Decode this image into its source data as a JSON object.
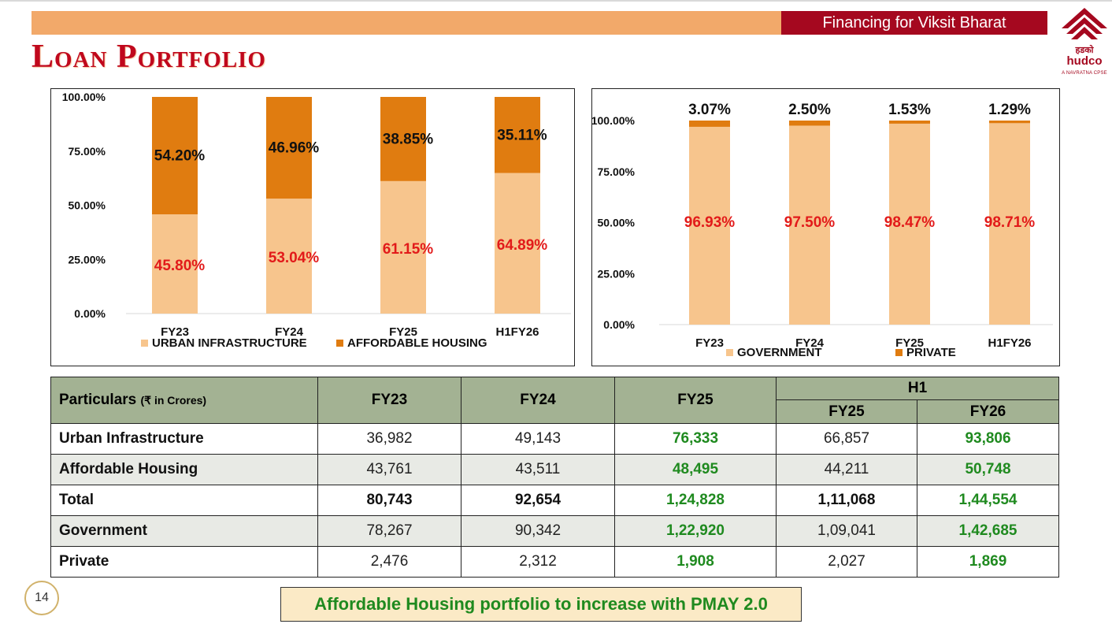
{
  "header": {
    "tag": "Financing  for Viksit Bharat",
    "title": "Loan Portfolio"
  },
  "logo": {
    "hindi": "हडको",
    "brand": "hudco",
    "subtitle": "A NAVRATNA CPSE"
  },
  "colors": {
    "light": "#f7c58d",
    "dark": "#e07c10",
    "red_label": "#e21a1a",
    "brand": "#a5081f",
    "green": "#1f8a1f"
  },
  "chart_data": [
    {
      "type": "bar",
      "stacked": true,
      "categories": [
        "FY23",
        "FY24",
        "FY25",
        "H1FY26"
      ],
      "series": [
        {
          "name": "URBAN INFRASTRUCTURE",
          "values": [
            45.8,
            53.04,
            61.15,
            64.89
          ],
          "labels": [
            "45.80%",
            "53.04%",
            "61.15%",
            "64.89%"
          ]
        },
        {
          "name": "AFFORDABLE HOUSING",
          "values": [
            54.2,
            46.96,
            38.85,
            35.11
          ],
          "labels": [
            "54.20%",
            "46.96%",
            "38.85%",
            "35.11%"
          ]
        }
      ],
      "yticks": [
        "0.00%",
        "25.00%",
        "50.00%",
        "75.00%",
        "100.00%"
      ],
      "ylim": [
        0,
        100
      ],
      "legend": "bottom"
    },
    {
      "type": "bar",
      "stacked": true,
      "categories": [
        "FY23",
        "FY24",
        "FY25",
        "H1FY26"
      ],
      "series": [
        {
          "name": "GOVERNMENT",
          "values": [
            96.93,
            97.5,
            98.47,
            98.71
          ],
          "labels": [
            "96.93%",
            "97.50%",
            "98.47%",
            "98.71%"
          ]
        },
        {
          "name": "PRIVATE",
          "values": [
            3.07,
            2.5,
            1.53,
            1.29
          ],
          "labels": [
            "3.07%",
            "2.50%",
            "1.53%",
            "1.29%"
          ]
        }
      ],
      "yticks": [
        "0.00%",
        "25.00%",
        "50.00%",
        "75.00%",
        "100.00%"
      ],
      "ylim": [
        0,
        100
      ],
      "legend": "bottom"
    }
  ],
  "table": {
    "particulars_label": "Particulars",
    "unit_label": "(₹ in Crores)",
    "columns": [
      "FY23",
      "FY24",
      "FY25"
    ],
    "h1_label": "H1",
    "h1_columns": [
      "FY25",
      "FY26"
    ],
    "rows": [
      {
        "label": "Urban Infrastructure",
        "values": [
          "36,982",
          "49,143",
          "76,333",
          "66,857",
          "93,806"
        ]
      },
      {
        "label": "Affordable Housing",
        "values": [
          "43,761",
          "43,511",
          "48,495",
          "44,211",
          "50,748"
        ]
      },
      {
        "label": "Total",
        "values": [
          "80,743",
          "92,654",
          "1,24,828",
          "1,11,068",
          "1,44,554"
        ]
      },
      {
        "label": "Government",
        "values": [
          "78,267",
          "90,342",
          "1,22,920",
          "1,09,041",
          "1,42,685"
        ]
      },
      {
        "label": "Private",
        "values": [
          "2,476",
          "2,312",
          "1,908",
          "2,027",
          "1,869"
        ]
      }
    ]
  },
  "footer": {
    "page_number": "14",
    "note": "Affordable Housing portfolio to increase with PMAY 2.0"
  }
}
